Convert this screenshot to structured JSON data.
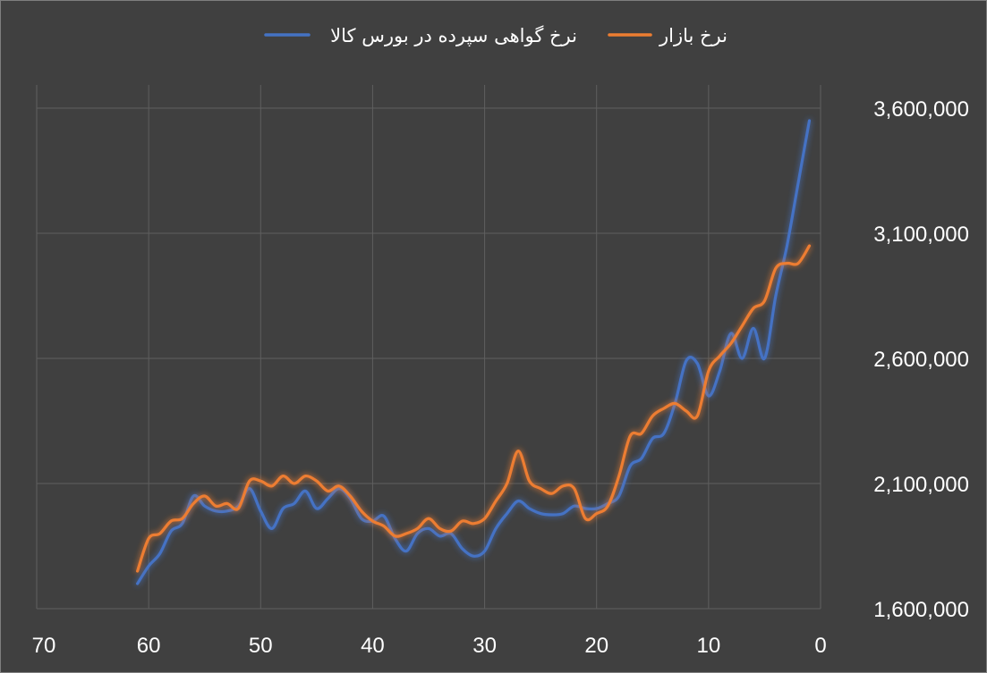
{
  "chart_data": {
    "type": "line",
    "title": "",
    "xlabel": "",
    "ylabel": "",
    "x_reversed": true,
    "xlim": [
      0,
      70
    ],
    "ylim": [
      1600000,
      3600000
    ],
    "y_axis_position": "right",
    "x_ticks": [
      "70",
      "60",
      "50",
      "40",
      "30",
      "20",
      "10",
      "0"
    ],
    "y_ticks": [
      "3,600,000",
      "3,100,000",
      "2,600,000",
      "2,100,000",
      "1,600,000"
    ],
    "grid": true,
    "legend_position": "top",
    "series": [
      {
        "name": "نرخ گواهی سپرده در بورس کالا",
        "color": "#4472C4",
        "points": [
          [
            1,
            3550000
          ],
          [
            2,
            3300000
          ],
          [
            3,
            3050000
          ],
          [
            4,
            2850000
          ],
          [
            5,
            2600000
          ],
          [
            6,
            2720000
          ],
          [
            7,
            2600000
          ],
          [
            8,
            2700000
          ],
          [
            9,
            2550000
          ],
          [
            10,
            2450000
          ],
          [
            11,
            2580000
          ],
          [
            12,
            2590000
          ],
          [
            13,
            2420000
          ],
          [
            14,
            2300000
          ],
          [
            15,
            2280000
          ],
          [
            16,
            2200000
          ],
          [
            17,
            2170000
          ],
          [
            18,
            2050000
          ],
          [
            19,
            2020000
          ],
          [
            20,
            2000000
          ],
          [
            21,
            2000000
          ],
          [
            22,
            2010000
          ],
          [
            23,
            1980000
          ],
          [
            24,
            1975000
          ],
          [
            25,
            1980000
          ],
          [
            26,
            2000000
          ],
          [
            27,
            2030000
          ],
          [
            28,
            1980000
          ],
          [
            29,
            1920000
          ],
          [
            30,
            1830000
          ],
          [
            31,
            1810000
          ],
          [
            32,
            1840000
          ],
          [
            33,
            1900000
          ],
          [
            34,
            1890000
          ],
          [
            35,
            1920000
          ],
          [
            36,
            1900000
          ],
          [
            37,
            1830000
          ],
          [
            38,
            1880000
          ],
          [
            39,
            1970000
          ],
          [
            40,
            1950000
          ],
          [
            41,
            1960000
          ],
          [
            42,
            2040000
          ],
          [
            43,
            2080000
          ],
          [
            44,
            2040000
          ],
          [
            45,
            2000000
          ],
          [
            46,
            2070000
          ],
          [
            47,
            2020000
          ],
          [
            48,
            2000000
          ],
          [
            49,
            1920000
          ],
          [
            50,
            1990000
          ],
          [
            51,
            2080000
          ],
          [
            52,
            2010000
          ],
          [
            53,
            1990000
          ],
          [
            54,
            1990000
          ],
          [
            55,
            2010000
          ],
          [
            56,
            2050000
          ],
          [
            57,
            1940000
          ],
          [
            58,
            1910000
          ],
          [
            59,
            1820000
          ],
          [
            60,
            1770000
          ],
          [
            61,
            1700000
          ]
        ]
      },
      {
        "name": "نرخ بازار",
        "color": "#ED7D31",
        "points": [
          [
            1,
            3050000
          ],
          [
            2,
            2980000
          ],
          [
            3,
            2980000
          ],
          [
            4,
            2960000
          ],
          [
            5,
            2830000
          ],
          [
            6,
            2800000
          ],
          [
            7,
            2730000
          ],
          [
            8,
            2660000
          ],
          [
            9,
            2610000
          ],
          [
            10,
            2550000
          ],
          [
            11,
            2370000
          ],
          [
            12,
            2390000
          ],
          [
            13,
            2420000
          ],
          [
            14,
            2400000
          ],
          [
            15,
            2370000
          ],
          [
            16,
            2300000
          ],
          [
            17,
            2290000
          ],
          [
            18,
            2130000
          ],
          [
            19,
            2010000
          ],
          [
            20,
            1980000
          ],
          [
            21,
            1960000
          ],
          [
            22,
            2080000
          ],
          [
            23,
            2090000
          ],
          [
            24,
            2060000
          ],
          [
            25,
            2080000
          ],
          [
            26,
            2110000
          ],
          [
            27,
            2230000
          ],
          [
            28,
            2100000
          ],
          [
            29,
            2030000
          ],
          [
            30,
            1960000
          ],
          [
            31,
            1940000
          ],
          [
            32,
            1950000
          ],
          [
            33,
            1910000
          ],
          [
            34,
            1920000
          ],
          [
            35,
            1960000
          ],
          [
            36,
            1920000
          ],
          [
            37,
            1900000
          ],
          [
            38,
            1890000
          ],
          [
            39,
            1930000
          ],
          [
            40,
            1950000
          ],
          [
            41,
            1990000
          ],
          [
            42,
            2050000
          ],
          [
            43,
            2090000
          ],
          [
            44,
            2070000
          ],
          [
            45,
            2110000
          ],
          [
            46,
            2130000
          ],
          [
            47,
            2100000
          ],
          [
            48,
            2130000
          ],
          [
            49,
            2090000
          ],
          [
            50,
            2110000
          ],
          [
            51,
            2110000
          ],
          [
            52,
            2000000
          ],
          [
            53,
            2020000
          ],
          [
            54,
            2010000
          ],
          [
            55,
            2050000
          ],
          [
            56,
            2020000
          ],
          [
            57,
            1960000
          ],
          [
            58,
            1950000
          ],
          [
            59,
            1900000
          ],
          [
            60,
            1880000
          ],
          [
            61,
            1750000
          ]
        ]
      }
    ]
  }
}
